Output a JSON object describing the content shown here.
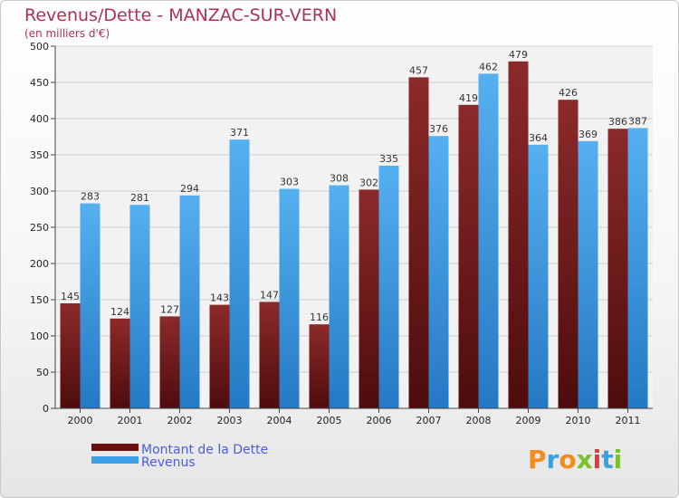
{
  "chart_data": {
    "type": "bar",
    "title": "Revenus/Dette - MANZAC-SUR-VERN",
    "subtitle": "(en milliers d'€)",
    "categories": [
      "2000",
      "2001",
      "2002",
      "2003",
      "2004",
      "2005",
      "2006",
      "2007",
      "2008",
      "2009",
      "2010",
      "2011"
    ],
    "series": [
      {
        "name": "Montant de la Dette",
        "color": "#7a1c1c",
        "values": [
          145,
          124,
          127,
          143,
          147,
          116,
          302,
          457,
          419,
          479,
          426,
          386
        ]
      },
      {
        "name": "Revenus",
        "color": "#3d9fe6",
        "values": [
          283,
          281,
          294,
          371,
          303,
          308,
          335,
          376,
          462,
          364,
          369,
          387
        ]
      }
    ],
    "ylim": [
      0,
      500
    ],
    "yticks": [
      0,
      50,
      100,
      150,
      200,
      250,
      300,
      350,
      400,
      450,
      500
    ],
    "grid": true,
    "legend_position": "bottom-left"
  },
  "logo": {
    "letters": [
      "P",
      "r",
      "o",
      "x",
      "i",
      "t",
      "i"
    ],
    "colors": [
      "#f28c1e",
      "#3aa0e0",
      "#f28c1e",
      "#7bbf2a",
      "#e03a3a",
      "#3aa0e0",
      "#7bbf2a"
    ]
  }
}
